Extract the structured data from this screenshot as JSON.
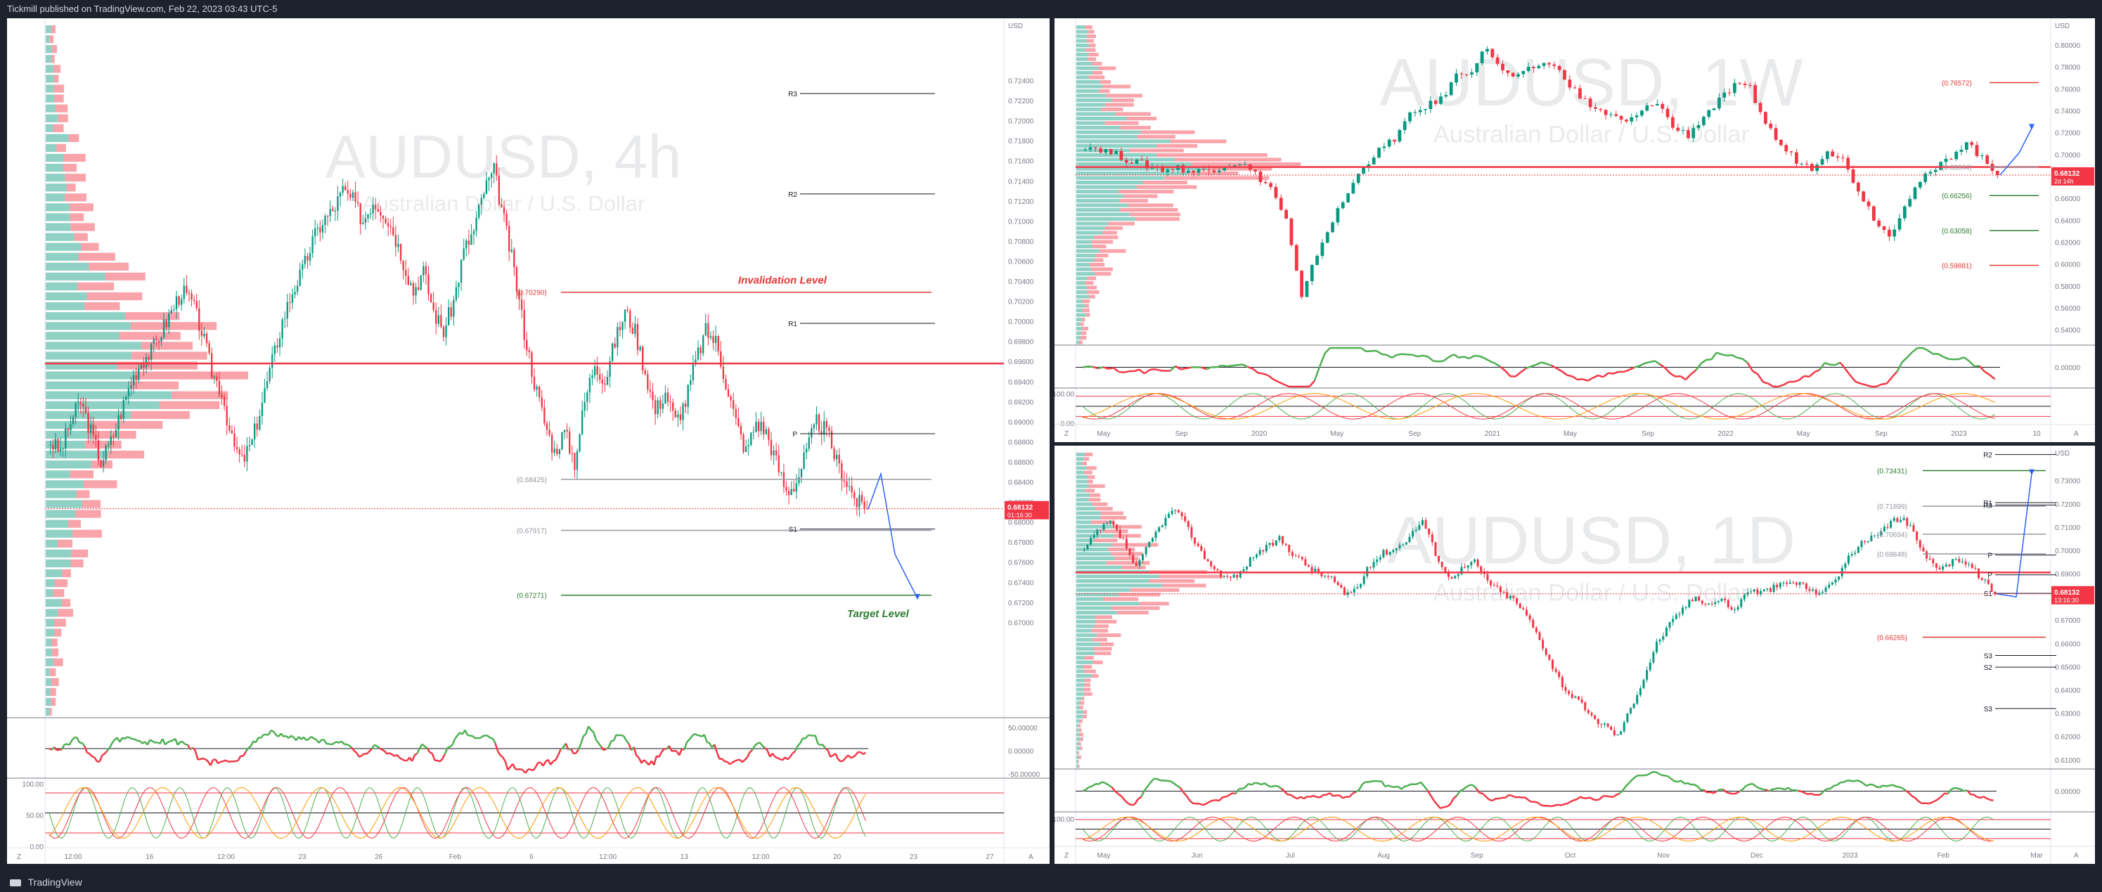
{
  "header": {
    "publisher": "Tickmill published on TradingView.com, Feb 22, 2023 03:43 UTC-5"
  },
  "footer": {
    "brand": "TradingView"
  },
  "colors": {
    "bull": "#089981",
    "bear": "#f23645",
    "level_green": "#2e7d32",
    "level_red": "#e53935",
    "accent_blue": "#2962ff",
    "pivot": "#000000",
    "target": "#2e7d32"
  },
  "chart_data": [
    {
      "id": "left",
      "type": "candlestick",
      "title": "AUDUSD, 4h",
      "subtitle": "Australian Dollar / U.S. Dollar",
      "currency": "USD",
      "ylim": [
        0.6605,
        0.7295
      ],
      "y_ticks": [
        "0.72400",
        "0.72200",
        "0.72000",
        "0.71800",
        "0.71600",
        "0.71400",
        "0.71200",
        "0.71000",
        "0.70800",
        "0.70600",
        "0.70400",
        "0.70200",
        "0.70000",
        "0.69800",
        "0.69600",
        "0.69400",
        "0.69200",
        "0.69000",
        "0.68800",
        "0.68600",
        "0.68400",
        "0.68200",
        "0.68000",
        "0.67800",
        "0.67600",
        "0.67400",
        "0.67200",
        "0.67000"
      ],
      "x_ticks": [
        "12:00",
        "16",
        "12:00",
        "23",
        "26",
        "Feb",
        "6",
        "12:00",
        "13",
        "12:00",
        "20",
        "23",
        "27"
      ],
      "last_price": "0.68132",
      "countdown": "01:16:30",
      "annotations": {
        "invalidation": {
          "text": "Invalidation Level",
          "value": 0.7032
        },
        "target": {
          "text": "Target Level",
          "value": 0.6708
        }
      },
      "levels": [
        {
          "label": "(0.70290)",
          "value": 0.7029,
          "color": "red"
        },
        {
          "label": "(0.68425)",
          "value": 0.68425,
          "color": "gray"
        },
        {
          "label": "(0.67917)",
          "value": 0.67917,
          "color": "gray"
        },
        {
          "label": "(0.67271)",
          "value": 0.67271,
          "color": "green"
        }
      ],
      "pivots": [
        {
          "label": "R3",
          "value": 0.7227
        },
        {
          "label": "R2",
          "value": 0.7127
        },
        {
          "label": "R1",
          "value": 0.6998
        },
        {
          "label": "P",
          "value": 0.6888
        },
        {
          "label": "S1",
          "value": 0.6793
        }
      ],
      "close_path": [
        0.688,
        0.687,
        0.69,
        0.692,
        0.689,
        0.686,
        0.688,
        0.691,
        0.694,
        0.696,
        0.697,
        0.699,
        0.701,
        0.703,
        0.702,
        0.699,
        0.695,
        0.693,
        0.688,
        0.686,
        0.688,
        0.692,
        0.696,
        0.7,
        0.703,
        0.705,
        0.708,
        0.71,
        0.711,
        0.713,
        0.712,
        0.71,
        0.712,
        0.711,
        0.709,
        0.706,
        0.703,
        0.705,
        0.701,
        0.699,
        0.702,
        0.707,
        0.709,
        0.713,
        0.715,
        0.71,
        0.705,
        0.699,
        0.694,
        0.69,
        0.687,
        0.689,
        0.686,
        0.692,
        0.696,
        0.694,
        0.698,
        0.701,
        0.699,
        0.695,
        0.691,
        0.693,
        0.69,
        0.692,
        0.696,
        0.699,
        0.698,
        0.694,
        0.69,
        0.687,
        0.69,
        0.689,
        0.686,
        0.683,
        0.684,
        0.687,
        0.69,
        0.689,
        0.686,
        0.684,
        0.682,
        0.6813
      ],
      "forecast": [
        [
          0.6813,
          0.6818
        ],
        [
          0.6848,
          0.6849
        ],
        [
          0.6768,
          0.6818
        ],
        [
          0.6724,
          0.6848
        ]
      ],
      "rsi_ylabels": [
        "50.00000",
        "0.00000",
        "-50.00000"
      ],
      "stoch_ylabels": [
        "100.00",
        "50.00",
        "0.00"
      ]
    },
    {
      "id": "top-right",
      "type": "candlestick",
      "title": "AUDUSD, 1W",
      "subtitle": "Australian Dollar / U.S. Dollar",
      "currency": "USD",
      "ylim": [
        0.526,
        0.818
      ],
      "y_ticks": [
        "0.80000",
        "0.78000",
        "0.76000",
        "0.74000",
        "0.72000",
        "0.70000",
        "0.68000",
        "0.66000",
        "0.64000",
        "0.62000",
        "0.60000",
        "0.58000",
        "0.56000",
        "0.54000"
      ],
      "x_ticks": [
        "May",
        "Sep",
        "2020",
        "May",
        "Sep",
        "2021",
        "May",
        "Sep",
        "2022",
        "May",
        "Sep",
        "2023",
        "10"
      ],
      "last_price": "0.68132",
      "countdown": "2d 14h",
      "levels": [
        {
          "label": "(0.76572)",
          "value": 0.76572,
          "color": "red"
        },
        {
          "label": "(0.68864)",
          "value": 0.68864,
          "color": "gray"
        },
        {
          "label": "(0.66256)",
          "value": 0.66256,
          "color": "green"
        },
        {
          "label": "(0.63058)",
          "value": 0.63058,
          "color": "green"
        },
        {
          "label": "(0.59881)",
          "value": 0.59881,
          "color": "red"
        }
      ],
      "close_path": [
        0.708,
        0.705,
        0.7,
        0.694,
        0.69,
        0.686,
        0.688,
        0.684,
        0.686,
        0.69,
        0.693,
        0.682,
        0.67,
        0.64,
        0.568,
        0.61,
        0.64,
        0.665,
        0.69,
        0.703,
        0.715,
        0.735,
        0.744,
        0.75,
        0.772,
        0.778,
        0.798,
        0.775,
        0.77,
        0.78,
        0.784,
        0.771,
        0.752,
        0.742,
        0.735,
        0.729,
        0.739,
        0.749,
        0.725,
        0.718,
        0.735,
        0.749,
        0.762,
        0.76,
        0.729,
        0.708,
        0.695,
        0.688,
        0.705,
        0.695,
        0.668,
        0.643,
        0.625,
        0.655,
        0.676,
        0.686,
        0.699,
        0.712,
        0.696,
        0.6813
      ],
      "rsi_ylabels": [
        "0.00000"
      ],
      "stoch_ylabels": [
        "100.00",
        "0.00"
      ]
    },
    {
      "id": "bottom-right",
      "type": "candlestick",
      "title": "AUDUSD, 1D",
      "subtitle": "Australian Dollar / U.S. Dollar",
      "currency": "USD",
      "ylim": [
        0.606,
        0.742
      ],
      "y_ticks": [
        "0.73000",
        "0.72000",
        "0.71000",
        "0.70000",
        "0.69000",
        "0.68000",
        "0.67000",
        "0.66000",
        "0.65000",
        "0.64000",
        "0.63000",
        "0.62000",
        "0.61000"
      ],
      "x_ticks": [
        "May",
        "Jun",
        "Jul",
        "Aug",
        "Sep",
        "Oct",
        "Nov",
        "Dec",
        "2023",
        "Feb",
        "Mar"
      ],
      "last_price": "0.68132",
      "countdown": "13:16:30",
      "levels": [
        {
          "label": "(0.73431)",
          "value": 0.73431,
          "color": "green"
        },
        {
          "label": "(0.71899)",
          "value": 0.71899,
          "color": "gray"
        },
        {
          "label": "(0.70694)",
          "value": 0.70694,
          "color": "gray"
        },
        {
          "label": "(0.69848)",
          "value": 0.69848,
          "color": "gray"
        },
        {
          "label": "(0.66265)",
          "value": 0.66265,
          "color": "red"
        }
      ],
      "pivots": [
        {
          "label": "R2",
          "value": 0.7412
        },
        {
          "label": "R1",
          "value": 0.7205
        },
        {
          "label": "R3",
          "value": 0.7195
        },
        {
          "label": "P",
          "value": 0.698
        },
        {
          "label": "P",
          "value": 0.6895
        },
        {
          "label": "S1",
          "value": 0.6815
        },
        {
          "label": "S3",
          "value": 0.6548
        },
        {
          "label": "S2",
          "value": 0.6498
        },
        {
          "label": "S3",
          "value": 0.632
        }
      ],
      "close_path": [
        0.7,
        0.708,
        0.712,
        0.704,
        0.692,
        0.703,
        0.712,
        0.718,
        0.709,
        0.699,
        0.692,
        0.688,
        0.69,
        0.698,
        0.701,
        0.705,
        0.699,
        0.694,
        0.69,
        0.688,
        0.681,
        0.684,
        0.694,
        0.699,
        0.701,
        0.706,
        0.713,
        0.699,
        0.688,
        0.692,
        0.695,
        0.687,
        0.682,
        0.679,
        0.672,
        0.662,
        0.65,
        0.64,
        0.635,
        0.628,
        0.625,
        0.62,
        0.632,
        0.645,
        0.66,
        0.668,
        0.675,
        0.68,
        0.677,
        0.679,
        0.674,
        0.683,
        0.682,
        0.684,
        0.686,
        0.686,
        0.682,
        0.683,
        0.69,
        0.699,
        0.704,
        0.706,
        0.712,
        0.714,
        0.705,
        0.695,
        0.692,
        0.697,
        0.694,
        0.688,
        0.6813
      ],
      "rsi_ylabels": [
        "0.00000"
      ],
      "stoch_ylabels": [
        "100.00"
      ]
    }
  ]
}
